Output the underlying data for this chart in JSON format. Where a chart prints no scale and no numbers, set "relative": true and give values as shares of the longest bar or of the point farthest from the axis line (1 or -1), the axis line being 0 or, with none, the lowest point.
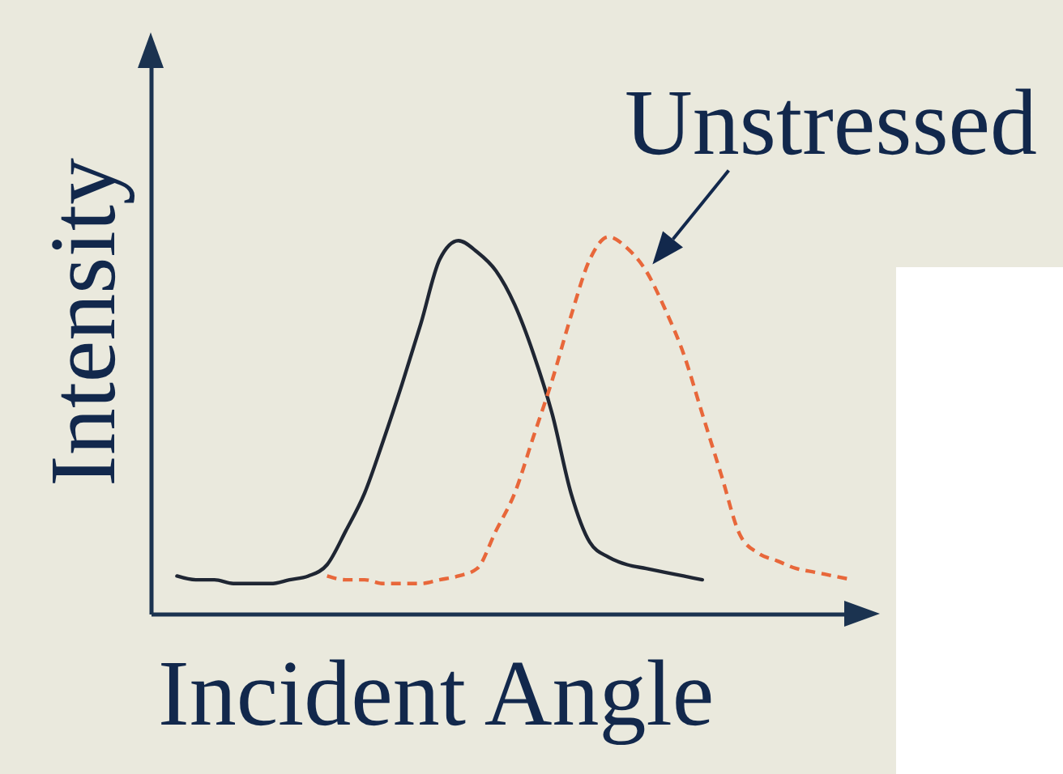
{
  "chart_data": {
    "type": "line",
    "xlabel": "Incident Angle",
    "ylabel": "Intensity",
    "relative": true,
    "categories": [
      null,
      null,
      null,
      null,
      null,
      null,
      null,
      null,
      null,
      null,
      null,
      null,
      null,
      null,
      null,
      null,
      null,
      null,
      null,
      null,
      null,
      null,
      null,
      null,
      null,
      null,
      null,
      null,
      null,
      null,
      null,
      null,
      null,
      null,
      null,
      null,
      null
    ],
    "series": [
      {
        "color": "#1f2633",
        "line_style": "solid",
        "values": [
          0.1,
          0.09,
          0.09,
          0.08,
          0.08,
          0.08,
          0.09,
          0.1,
          0.13,
          0.22,
          0.32,
          0.46,
          0.61,
          0.77,
          0.94,
          0.99,
          0.96,
          0.91,
          0.82,
          0.69,
          0.53,
          0.32,
          0.19,
          0.15,
          0.13,
          0.12,
          0.11,
          0.1,
          0.09,
          null,
          null,
          null,
          null,
          null,
          null,
          null,
          null
        ]
      },
      {
        "name": "Unstressed",
        "color": "#e8673a",
        "line_style": "dashed",
        "values": [
          null,
          null,
          null,
          null,
          null,
          null,
          null,
          null,
          0.1,
          0.09,
          0.09,
          0.08,
          0.08,
          0.08,
          0.09,
          0.1,
          0.12,
          0.22,
          0.32,
          0.47,
          0.62,
          0.79,
          0.94,
          1,
          0.97,
          0.91,
          0.81,
          0.69,
          0.53,
          0.37,
          0.21,
          0.16,
          0.14,
          0.12,
          0.11,
          0.1,
          0.09
        ]
      }
    ]
  }
}
